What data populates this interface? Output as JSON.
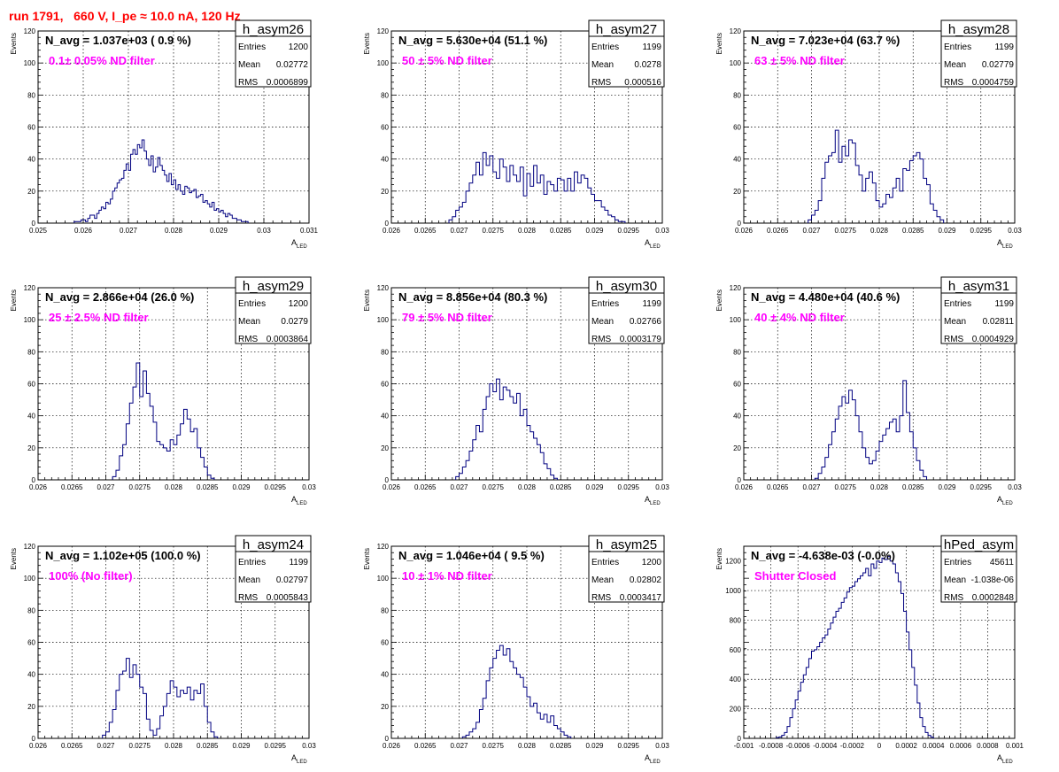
{
  "page_title": "run 1791,   660 V, I_pe ≈ 10.0 nA, 120 Hz",
  "colors": {
    "histogram": "#000080",
    "title": "#ff0000",
    "annotation": "#ff00ff",
    "grid": "#000000"
  },
  "chart_data": [
    {
      "type": "histogram",
      "name": "h_asym26",
      "title": "N_avg = 1.037e+03 ( 0.9 %)",
      "annotation": "0.1± 0.05% ND filter",
      "stats": {
        "entries_label": "Entries",
        "entries": "1200",
        "mean_label": "Mean",
        "mean": "0.02772",
        "rms_label": "RMS",
        "rms": "0.0006899"
      },
      "xlabel": "A",
      "xlabel_sub": "LED",
      "ylabel": "Events",
      "xlim": [
        0.025,
        0.031
      ],
      "ylim": [
        0,
        120
      ],
      "xticks": [
        "0.025",
        "0.026",
        "0.027",
        "0.028",
        "0.029",
        "0.03",
        "0.031"
      ],
      "yticks": [
        "0",
        "20",
        "40",
        "60",
        "80",
        "100",
        "120"
      ],
      "grid": true,
      "bins": {
        "start": 0.0258,
        "width": 5e-05,
        "counts": [
          1,
          1,
          1,
          2,
          2,
          1,
          3,
          5,
          5,
          3,
          6,
          8,
          10,
          9,
          13,
          12,
          15,
          20,
          22,
          25,
          27,
          28,
          33,
          37,
          33,
          43,
          46,
          43,
          49,
          47,
          52,
          45,
          40,
          36,
          42,
          32,
          35,
          41,
          36,
          33,
          30,
          26,
          31,
          24,
          27,
          21,
          24,
          20,
          18,
          23,
          22,
          19,
          20,
          21,
          16,
          17,
          18,
          13,
          14,
          12,
          10,
          13,
          8,
          9,
          7,
          8,
          6,
          4,
          6,
          5,
          3,
          3,
          2,
          2,
          1,
          1,
          1
        ]
      }
    },
    {
      "type": "histogram",
      "name": "h_asym27",
      "title": "N_avg = 5.630e+04 (51.1 %)",
      "annotation": "50 ± 5% ND filter",
      "stats": {
        "entries_label": "Entries",
        "entries": "1199",
        "mean_label": "Mean",
        "mean": "0.0278",
        "rms_label": "RMS",
        "rms": "0.000516"
      },
      "xlabel": "A",
      "xlabel_sub": "LED",
      "ylabel": "Events",
      "xlim": [
        0.026,
        0.03
      ],
      "ylim": [
        0,
        120
      ],
      "xticks": [
        "0.026",
        "0.0265",
        "0.027",
        "0.0275",
        "0.028",
        "0.0285",
        "0.029",
        "0.0295",
        "0.03"
      ],
      "yticks": [
        "0",
        "20",
        "40",
        "60",
        "80",
        "100",
        "120"
      ],
      "grid": true,
      "bins": {
        "start": 0.02685,
        "width": 5e-05,
        "counts": [
          2,
          4,
          8,
          10,
          13,
          20,
          25,
          30,
          38,
          30,
          44,
          36,
          42,
          32,
          28,
          40,
          35,
          26,
          36,
          30,
          26,
          35,
          17,
          31,
          23,
          36,
          25,
          30,
          18,
          26,
          24,
          20,
          28,
          27,
          20,
          28,
          20,
          32,
          25,
          30,
          28,
          22,
          18,
          14,
          14,
          10,
          8,
          5,
          4,
          2,
          1,
          1
        ]
      }
    },
    {
      "type": "histogram",
      "name": "h_asym28",
      "title": "N_avg = 7.023e+04 (63.7 %)",
      "annotation": "63 ± 5% ND filter",
      "stats": {
        "entries_label": "Entries",
        "entries": "1199",
        "mean_label": "Mean",
        "mean": "0.02779",
        "rms_label": "RMS",
        "rms": "0.0004759"
      },
      "xlabel": "A",
      "xlabel_sub": "LED",
      "ylabel": "Events",
      "xlim": [
        0.026,
        0.03
      ],
      "ylim": [
        0,
        120
      ],
      "xticks": [
        "0.026",
        "0.0265",
        "0.027",
        "0.0275",
        "0.028",
        "0.0285",
        "0.029",
        "0.0295",
        "0.03"
      ],
      "yticks": [
        "0",
        "20",
        "40",
        "60",
        "80",
        "100",
        "120"
      ],
      "grid": true,
      "bins": {
        "start": 0.02695,
        "width": 5e-05,
        "counts": [
          2,
          5,
          8,
          14,
          28,
          38,
          42,
          44,
          58,
          38,
          48,
          42,
          52,
          50,
          36,
          30,
          20,
          28,
          32,
          25,
          14,
          10,
          12,
          18,
          16,
          22,
          28,
          20,
          34,
          33,
          39,
          42,
          44,
          40,
          28,
          24,
          12,
          8,
          4,
          2
        ]
      }
    },
    {
      "type": "histogram",
      "name": "h_asym29",
      "title": "N_avg = 2.866e+04 (26.0 %)",
      "annotation": "25 ± 2.5% ND filter",
      "stats": {
        "entries_label": "Entries",
        "entries": "1200",
        "mean_label": "Mean",
        "mean": "0.0279",
        "rms_label": "RMS",
        "rms": "0.0003864"
      },
      "xlabel": "A",
      "xlabel_sub": "LED",
      "ylabel": "Events",
      "xlim": [
        0.026,
        0.03
      ],
      "ylim": [
        0,
        120
      ],
      "xticks": [
        "0.026",
        "0.0265",
        "0.027",
        "0.0275",
        "0.028",
        "0.0285",
        "0.029",
        "0.0295",
        "0.03"
      ],
      "yticks": [
        "0",
        "20",
        "40",
        "60",
        "80",
        "100",
        "120"
      ],
      "grid": true,
      "bins": {
        "start": 0.0271,
        "width": 5e-05,
        "counts": [
          2,
          6,
          15,
          22,
          35,
          48,
          58,
          73,
          52,
          68,
          54,
          46,
          36,
          24,
          22,
          20,
          18,
          25,
          22,
          28,
          35,
          44,
          38,
          30,
          32,
          20,
          14,
          8,
          3,
          1
        ]
      }
    },
    {
      "type": "histogram",
      "name": "h_asym30",
      "title": "N_avg = 8.856e+04 (80.3 %)",
      "annotation": "79 ± 5% ND filter",
      "stats": {
        "entries_label": "Entries",
        "entries": "1199",
        "mean_label": "Mean",
        "mean": "0.02766",
        "rms_label": "RMS",
        "rms": "0.0003179"
      },
      "xlabel": "A",
      "xlabel_sub": "LED",
      "ylabel": "Events",
      "xlim": [
        0.026,
        0.03
      ],
      "ylim": [
        0,
        120
      ],
      "xticks": [
        "0.026",
        "0.0265",
        "0.027",
        "0.0275",
        "0.028",
        "0.0285",
        "0.029",
        "0.0295",
        "0.03"
      ],
      "yticks": [
        "0",
        "20",
        "40",
        "60",
        "80",
        "100",
        "120"
      ],
      "grid": true,
      "bins": {
        "start": 0.02695,
        "width": 5e-05,
        "counts": [
          2,
          4,
          8,
          12,
          18,
          25,
          34,
          30,
          44,
          52,
          60,
          55,
          63,
          50,
          58,
          56,
          52,
          48,
          54,
          40,
          44,
          34,
          30,
          26,
          22,
          17,
          10,
          7,
          3,
          1
        ]
      }
    },
    {
      "type": "histogram",
      "name": "h_asym31",
      "title": "N_avg = 4.480e+04 (40.6 %)",
      "annotation": "40 ± 4% ND filter",
      "stats": {
        "entries_label": "Entries",
        "entries": "1199",
        "mean_label": "Mean",
        "mean": "0.02811",
        "rms_label": "RMS",
        "rms": "0.0004929"
      },
      "xlabel": "A",
      "xlabel_sub": "LED",
      "ylabel": "Events",
      "xlim": [
        0.026,
        0.03
      ],
      "ylim": [
        0,
        120
      ],
      "xticks": [
        "0.026",
        "0.0265",
        "0.027",
        "0.0275",
        "0.028",
        "0.0285",
        "0.029",
        "0.0295",
        "0.03"
      ],
      "yticks": [
        "0",
        "20",
        "40",
        "60",
        "80",
        "100",
        "120"
      ],
      "grid": true,
      "bins": {
        "start": 0.02705,
        "width": 5e-05,
        "counts": [
          1,
          4,
          8,
          14,
          22,
          30,
          38,
          46,
          52,
          48,
          56,
          50,
          40,
          30,
          20,
          14,
          10,
          12,
          18,
          24,
          28,
          32,
          36,
          38,
          30,
          40,
          62,
          42,
          30,
          20,
          12,
          6,
          2
        ]
      }
    },
    {
      "type": "histogram",
      "name": "h_asym24",
      "title": "N_avg = 1.102e+05 (100.0 %)",
      "annotation": "100% (No filter)",
      "stats": {
        "entries_label": "Entries",
        "entries": "1199",
        "mean_label": "Mean",
        "mean": "0.02797",
        "rms_label": "RMS",
        "rms": "0.0005843"
      },
      "xlabel": "A",
      "xlabel_sub": "LED",
      "ylabel": "Events",
      "xlim": [
        0.026,
        0.03
      ],
      "ylim": [
        0,
        120
      ],
      "xticks": [
        "0.026",
        "0.0265",
        "0.027",
        "0.0275",
        "0.028",
        "0.0285",
        "0.029",
        "0.0295",
        "0.03"
      ],
      "yticks": [
        "0",
        "20",
        "40",
        "60",
        "80",
        "100",
        "120"
      ],
      "grid": true,
      "bins": {
        "start": 0.02695,
        "width": 5e-05,
        "counts": [
          2,
          4,
          10,
          18,
          30,
          40,
          42,
          50,
          38,
          46,
          40,
          32,
          28,
          12,
          5,
          2,
          6,
          14,
          20,
          28,
          36,
          32,
          26,
          30,
          28,
          32,
          24,
          30,
          28,
          34,
          20,
          10,
          4,
          1
        ]
      }
    },
    {
      "type": "histogram",
      "name": "h_asym25",
      "title": "N_avg = 1.046e+04 ( 9.5 %)",
      "annotation": "10 ± 1% ND filter",
      "stats": {
        "entries_label": "Entries",
        "entries": "1200",
        "mean_label": "Mean",
        "mean": "0.02802",
        "rms_label": "RMS",
        "rms": "0.0003417"
      },
      "xlabel": "A",
      "xlabel_sub": "LED",
      "ylabel": "Events",
      "xlim": [
        0.026,
        0.03
      ],
      "ylim": [
        0,
        120
      ],
      "xticks": [
        "0.026",
        "0.0265",
        "0.027",
        "0.0275",
        "0.028",
        "0.0285",
        "0.029",
        "0.0295",
        "0.03"
      ],
      "yticks": [
        "0",
        "20",
        "40",
        "60",
        "80",
        "100",
        "120"
      ],
      "grid": true,
      "bins": {
        "start": 0.02705,
        "width": 5e-05,
        "counts": [
          1,
          2,
          4,
          6,
          10,
          18,
          25,
          36,
          44,
          50,
          55,
          58,
          52,
          56,
          48,
          44,
          40,
          38,
          32,
          26,
          20,
          22,
          16,
          12,
          15,
          10,
          14,
          8,
          6,
          4,
          2,
          1
        ]
      }
    },
    {
      "type": "histogram",
      "name": "hPed_asym",
      "title": "N_avg = -4.638e-03 (-0.0%)",
      "annotation": "Shutter Closed",
      "stats": {
        "entries_label": "Entries",
        "entries": "45611",
        "mean_label": "Mean",
        "mean": "-1.038e-06",
        "rms_label": "RMS",
        "rms": "0.0002848"
      },
      "xlabel": "A",
      "xlabel_sub": "LED",
      "ylabel": "Events",
      "xlim": [
        -0.001,
        0.001
      ],
      "ylim": [
        0,
        1300
      ],
      "xticks": [
        "-0.001",
        "-0.0008",
        "-0.0006",
        "-0.0004",
        "-0.0002",
        "0",
        "0.0002",
        "0.0004",
        "0.0006",
        "0.0008",
        "0.001"
      ],
      "yticks": [
        "0",
        "200",
        "400",
        "600",
        "800",
        "1000",
        "1200"
      ],
      "grid": true,
      "bins": {
        "start": -0.00076,
        "width": 2e-05,
        "counts": [
          5,
          10,
          20,
          40,
          80,
          140,
          200,
          260,
          320,
          380,
          430,
          480,
          540,
          590,
          600,
          620,
          650,
          680,
          700,
          740,
          780,
          820,
          860,
          880,
          920,
          950,
          990,
          1020,
          1030,
          1060,
          1080,
          1100,
          1120,
          1150,
          1100,
          1180,
          1150,
          1200,
          1190,
          1220,
          1210,
          1230,
          1200,
          1180,
          1120,
          1060,
          980,
          860,
          720,
          600,
          480,
          360,
          240,
          140,
          80,
          40,
          20,
          8
        ]
      }
    }
  ]
}
